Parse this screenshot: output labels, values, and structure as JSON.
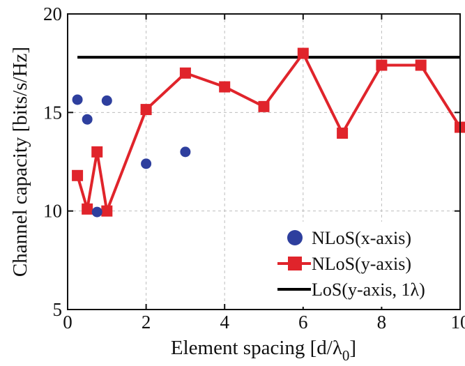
{
  "chart_data": {
    "type": "line",
    "xlabel": "Element spacing [d/λ",
    "xlabel_sub": "0",
    "xlabel_close": "]",
    "ylabel": "Channel capacity [bits/s/Hz]",
    "xlim": [
      0,
      10
    ],
    "ylim": [
      5,
      20
    ],
    "xticks": [
      0,
      2,
      4,
      6,
      8,
      10
    ],
    "yticks": [
      5,
      10,
      15,
      20
    ],
    "grid": true,
    "legend_position": "bottom-right",
    "series": [
      {
        "name": "NLoS(x-axis)",
        "style": "markers-circle",
        "color": "#2e3f9e",
        "x": [
          0.25,
          0.5,
          0.75,
          1,
          2,
          3
        ],
        "y": [
          15.65,
          14.65,
          9.95,
          15.6,
          12.4,
          13.0
        ]
      },
      {
        "name": "NLoS(y-axis)",
        "style": "line-square",
        "color": "#e0242b",
        "x": [
          0.25,
          0.5,
          0.75,
          1,
          2,
          3,
          4,
          5,
          6,
          7,
          8,
          9,
          10
        ],
        "y": [
          11.8,
          10.1,
          13.0,
          10.0,
          15.15,
          17.0,
          16.3,
          15.3,
          18.0,
          13.95,
          17.4,
          17.4,
          14.25
        ]
      },
      {
        "name": "LoS(y-axis, 1λ)",
        "style": "line",
        "color": "#000000",
        "x": [
          0.25,
          10
        ],
        "y": [
          17.8,
          17.8
        ]
      }
    ]
  }
}
